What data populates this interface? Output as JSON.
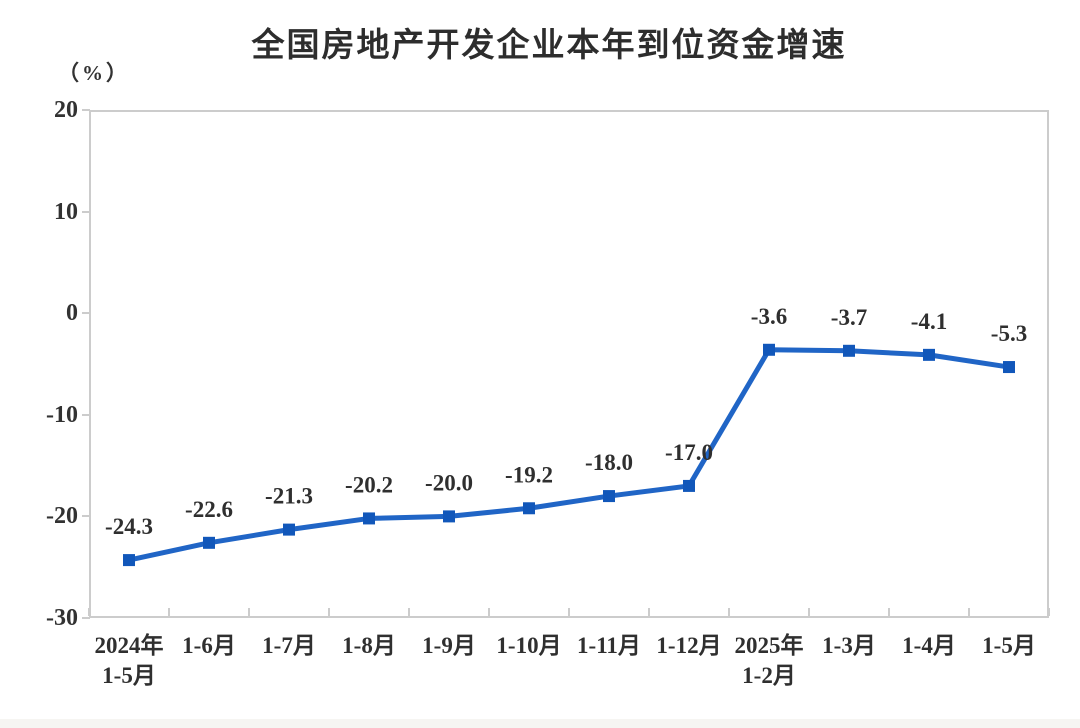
{
  "chart_data": {
    "type": "line",
    "title": "全国房地产开发企业本年到位资金增速",
    "ylabel": "（%）",
    "categories": [
      [
        "2024年",
        "1-5月"
      ],
      [
        "1-6月"
      ],
      [
        "1-7月"
      ],
      [
        "1-8月"
      ],
      [
        "1-9月"
      ],
      [
        "1-10月"
      ],
      [
        "1-11月"
      ],
      [
        "1-12月"
      ],
      [
        "2025年",
        "1-2月"
      ],
      [
        "1-3月"
      ],
      [
        "1-4月"
      ],
      [
        "1-5月"
      ]
    ],
    "values": [
      -24.3,
      -22.6,
      -21.3,
      -20.2,
      -20.0,
      -19.2,
      -18.0,
      -17.0,
      -3.6,
      -3.7,
      -4.1,
      -5.3
    ],
    "data_labels": [
      "-24.3",
      "-22.6",
      "-21.3",
      "-20.2",
      "-20.0",
      "-19.2",
      "-18.0",
      "-17.0",
      "-3.6",
      "-3.7",
      "-4.1",
      "-5.3"
    ],
    "y_ticks": [
      20,
      10,
      0,
      -10,
      -20,
      -30
    ],
    "ylim": [
      -30,
      20
    ],
    "grid": false,
    "legend": "none",
    "colors": {
      "line": "#2065c6",
      "marker": "#1157ba",
      "axis": "#cccccc",
      "text": "#2f2f2f",
      "title": "#2d2d2d"
    }
  }
}
